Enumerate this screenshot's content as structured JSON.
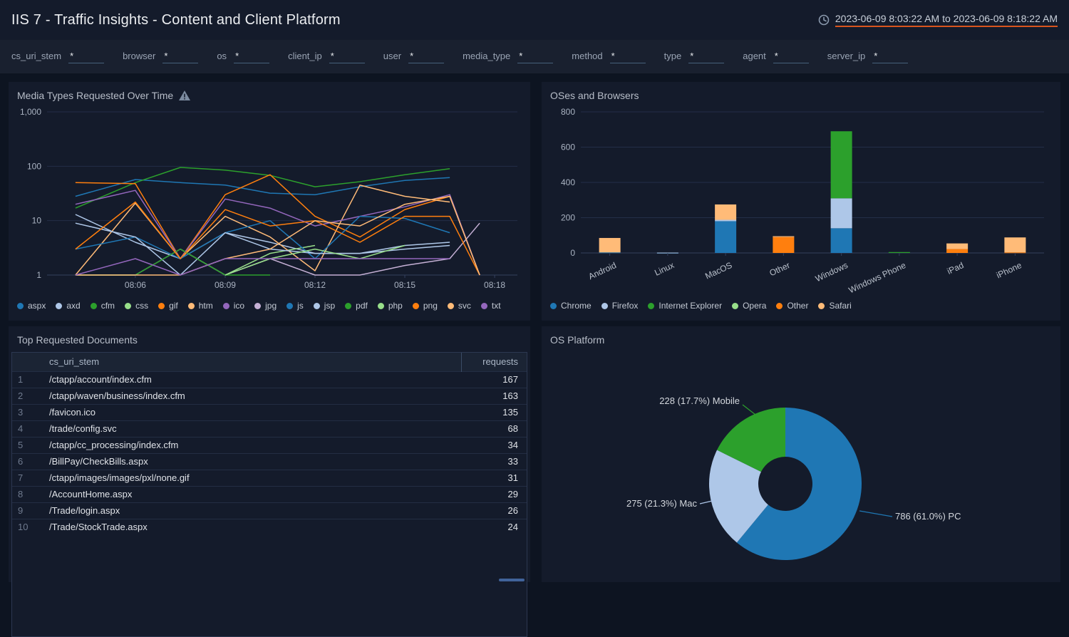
{
  "header": {
    "title": "IIS 7 - Traffic Insights - Content and Client Platform",
    "time_range": "2023-06-09 8:03:22 AM to 2023-06-09 8:18:22 AM"
  },
  "filters": [
    {
      "label": "cs_uri_stem",
      "value": "*"
    },
    {
      "label": "browser",
      "value": "*"
    },
    {
      "label": "os",
      "value": "*"
    },
    {
      "label": "client_ip",
      "value": "*"
    },
    {
      "label": "user",
      "value": "*"
    },
    {
      "label": "media_type",
      "value": "*"
    },
    {
      "label": "method",
      "value": "*"
    },
    {
      "label": "type",
      "value": "*"
    },
    {
      "label": "agent",
      "value": "*"
    },
    {
      "label": "server_ip",
      "value": "*"
    }
  ],
  "panels": {
    "media_types_title": "Media Types Requested Over Time",
    "os_browsers_title": "OSes and Browsers",
    "top_docs_title": "Top Requested Documents",
    "os_platform_title": "OS Platform"
  },
  "chart_data": [
    {
      "id": "media-types-over-time",
      "type": "line",
      "title": "Media Types Requested Over Time",
      "y_scale": "log",
      "ylim": [
        1,
        1000
      ],
      "y_tick_values": [
        1,
        10,
        100,
        1000
      ],
      "y_tick_labels": [
        "1",
        "10",
        "100",
        "1,000"
      ],
      "x_tick_minutes": [
        6,
        9,
        12,
        15,
        18
      ],
      "x_tick_labels": [
        "08:06",
        "08:09",
        "08:12",
        "08:15",
        "08:18"
      ],
      "x_minutes": [
        4,
        6,
        7.5,
        9,
        10.5,
        12,
        13.5,
        15,
        16.5,
        17.5
      ],
      "grid": true,
      "legend_position": "bottom",
      "series": [
        {
          "name": "aspx",
          "color": "#1f77b4",
          "values": [
            28,
            57,
            50,
            45,
            32,
            30,
            42,
            55,
            62,
            null
          ]
        },
        {
          "name": "axd",
          "color": "#aec7e8",
          "values": [
            13,
            4,
            2,
            6,
            4,
            2.5,
            2.5,
            3.5,
            4,
            null
          ]
        },
        {
          "name": "cfm",
          "color": "#2ca02c",
          "values": [
            17,
            50,
            95,
            85,
            68,
            42,
            52,
            70,
            90,
            null
          ]
        },
        {
          "name": "css",
          "color": "#98df8a",
          "values": [
            null,
            null,
            3,
            1,
            2.5,
            3.5,
            null,
            null,
            null,
            null
          ]
        },
        {
          "name": "gif",
          "color": "#ff7f0e",
          "values": [
            50,
            48,
            2,
            30,
            70,
            12,
            5,
            16,
            28,
            1
          ]
        },
        {
          "name": "htm",
          "color": "#ffbb78",
          "values": [
            1,
            21,
            2,
            12,
            5,
            1.2,
            45,
            28,
            22,
            null
          ]
        },
        {
          "name": "ico",
          "color": "#9467bd",
          "values": [
            20,
            36,
            2,
            25,
            17,
            8,
            12,
            18,
            30,
            1
          ]
        },
        {
          "name": "jpg",
          "color": "#c5b0d5",
          "values": [
            1,
            1,
            3,
            1,
            2,
            1,
            1,
            1.5,
            2,
            9
          ]
        },
        {
          "name": "js",
          "color": "#1f77b4",
          "values": [
            3,
            5,
            2,
            6,
            10,
            2,
            12,
            11,
            6,
            null
          ]
        },
        {
          "name": "jsp",
          "color": "#aec7e8",
          "values": [
            9,
            5,
            1,
            6,
            3,
            2.5,
            2.5,
            3,
            3.5,
            null
          ]
        },
        {
          "name": "pdf",
          "color": "#2ca02c",
          "values": [
            1,
            1,
            3,
            1,
            1,
            null,
            null,
            null,
            null,
            null
          ]
        },
        {
          "name": "php",
          "color": "#98df8a",
          "values": [
            null,
            null,
            null,
            1,
            2,
            3,
            2,
            3.5,
            null,
            null
          ]
        },
        {
          "name": "png",
          "color": "#ff7f0e",
          "values": [
            3,
            22,
            2,
            16,
            8,
            10,
            4,
            12,
            12,
            1
          ]
        },
        {
          "name": "svc",
          "color": "#ffbb78",
          "values": [
            1,
            1,
            1,
            2,
            3,
            10,
            8,
            20,
            28,
            1
          ]
        },
        {
          "name": "txt",
          "color": "#9467bd",
          "values": [
            1,
            2,
            1,
            2,
            2,
            2,
            2,
            2,
            2,
            null
          ]
        }
      ]
    },
    {
      "id": "oses-and-browsers",
      "type": "bar",
      "stacked": true,
      "title": "OSes and Browsers",
      "categories": [
        "Android",
        "Linux",
        "MacOS",
        "Other",
        "Windows",
        "Windows Phone",
        "iPad",
        "iPhone"
      ],
      "ylim": [
        0,
        800
      ],
      "y_ticks": [
        0,
        200,
        400,
        600,
        800
      ],
      "y_tick_labels": [
        "0",
        "200",
        "400",
        "600",
        "800"
      ],
      "legend_position": "bottom",
      "series": [
        {
          "name": "Chrome",
          "color": "#1f77b4",
          "values": [
            3,
            1,
            180,
            0,
            140,
            0,
            0,
            0
          ]
        },
        {
          "name": "Firefox",
          "color": "#aec7e8",
          "values": [
            0,
            1,
            8,
            0,
            170,
            0,
            0,
            0
          ]
        },
        {
          "name": "Internet Explorer",
          "color": "#2ca02c",
          "values": [
            0,
            0,
            0,
            0,
            380,
            5,
            0,
            0
          ]
        },
        {
          "name": "Opera",
          "color": "#98df8a",
          "values": [
            0,
            0,
            0,
            0,
            0,
            0,
            0,
            0
          ]
        },
        {
          "name": "Other",
          "color": "#ff7f0e",
          "values": [
            0,
            0,
            0,
            90,
            0,
            0,
            22,
            3
          ]
        },
        {
          "name": "Safari",
          "color": "#ffbb78",
          "values": [
            82,
            0,
            87,
            5,
            0,
            0,
            32,
            85
          ]
        }
      ]
    },
    {
      "id": "os-platform",
      "type": "pie",
      "donut": true,
      "title": "OS Platform",
      "start_angle": "top",
      "direction": "clockwise",
      "slices": [
        {
          "label": "PC",
          "value": 786,
          "percent": "61.0%",
          "annotation": "786 (61.0%) PC",
          "color": "#1f77b4"
        },
        {
          "label": "Mac",
          "value": 275,
          "percent": "21.3%",
          "annotation": "275 (21.3%) Mac",
          "color": "#aec7e8"
        },
        {
          "label": "Mobile",
          "value": 228,
          "percent": "17.7%",
          "annotation": "228 (17.7%) Mobile",
          "color": "#2ca02c"
        }
      ]
    }
  ],
  "table": {
    "columns": {
      "uri": "cs_uri_stem",
      "requests": "requests"
    },
    "rows": [
      {
        "rank": "1",
        "path": "/ctapp/account/index.cfm",
        "requests": "167"
      },
      {
        "rank": "2",
        "path": "/ctapp/waven/business/index.cfm",
        "requests": "163"
      },
      {
        "rank": "3",
        "path": "/favicon.ico",
        "requests": "135"
      },
      {
        "rank": "4",
        "path": "/trade/config.svc",
        "requests": "68"
      },
      {
        "rank": "5",
        "path": "/ctapp/cc_processing/index.cfm",
        "requests": "34"
      },
      {
        "rank": "6",
        "path": "/BillPay/CheckBills.aspx",
        "requests": "33"
      },
      {
        "rank": "7",
        "path": "/ctapp/images/images/pxl/none.gif",
        "requests": "31"
      },
      {
        "rank": "8",
        "path": "/AccountHome.aspx",
        "requests": "29"
      },
      {
        "rank": "9",
        "path": "/Trade/login.aspx",
        "requests": "26"
      },
      {
        "rank": "10",
        "path": "/Trade/StockTrade.aspx",
        "requests": "24"
      }
    ]
  },
  "colors": {
    "page_bg": "#0d1421",
    "panel_bg": "#141b2b",
    "filterbar_bg": "#19202f",
    "accent_underline": "#d9541e",
    "gridline": "#232e48",
    "axis_line": "#36425f",
    "input_underline": "#46617c"
  }
}
